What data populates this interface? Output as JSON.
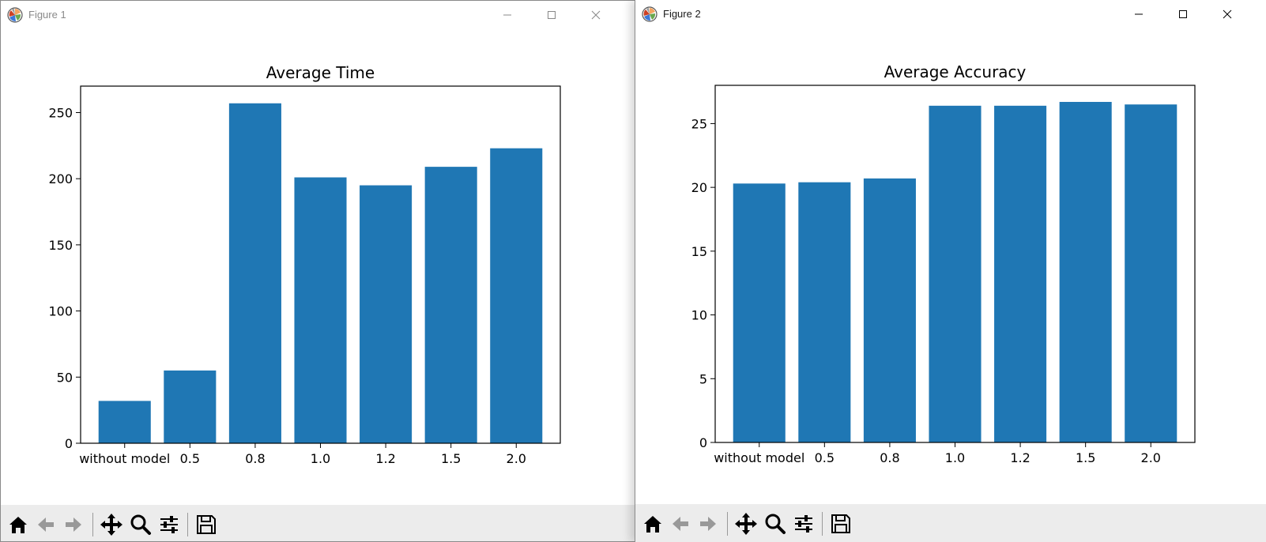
{
  "colors": {
    "bar": "#1f77b4",
    "toolbar_bg": "#ececec",
    "axis": "#000000"
  },
  "windows": [
    {
      "title": "Figure 1",
      "active": false,
      "controls": {
        "minimize": "minimize-icon",
        "maximize": "maximize-icon",
        "close": "close-icon"
      },
      "toolbar": [
        "home-icon",
        "back-arrow-icon",
        "forward-arrow-icon",
        "pan-icon",
        "zoom-icon",
        "configure-subplots-icon",
        "save-icon"
      ]
    },
    {
      "title": "Figure 2",
      "active": true,
      "controls": {
        "minimize": "minimize-icon",
        "maximize": "maximize-icon",
        "close": "close-icon"
      },
      "toolbar": [
        "home-icon",
        "back-arrow-icon",
        "forward-arrow-icon",
        "pan-icon",
        "zoom-icon",
        "configure-subplots-icon",
        "save-icon"
      ]
    }
  ],
  "chart_data": [
    {
      "type": "bar",
      "title": "Average Time",
      "xlabel": "",
      "ylabel": "",
      "categories": [
        "without model",
        "0.5",
        "0.8",
        "1.0",
        "1.2",
        "1.5",
        "2.0"
      ],
      "values": [
        32,
        55,
        257,
        201,
        195,
        209,
        223
      ],
      "ylim": [
        0,
        270
      ],
      "yticks": [
        0,
        50,
        100,
        150,
        200,
        250
      ],
      "grid": false,
      "legend": "none"
    },
    {
      "type": "bar",
      "title": "Average Accuracy",
      "xlabel": "",
      "ylabel": "",
      "categories": [
        "without model",
        "0.5",
        "0.8",
        "1.0",
        "1.2",
        "1.5",
        "2.0"
      ],
      "values": [
        20.3,
        20.4,
        20.7,
        26.4,
        26.4,
        26.7,
        26.5
      ],
      "ylim": [
        0,
        28
      ],
      "yticks": [
        0,
        5,
        10,
        15,
        20,
        25
      ],
      "grid": false,
      "legend": "none"
    }
  ]
}
